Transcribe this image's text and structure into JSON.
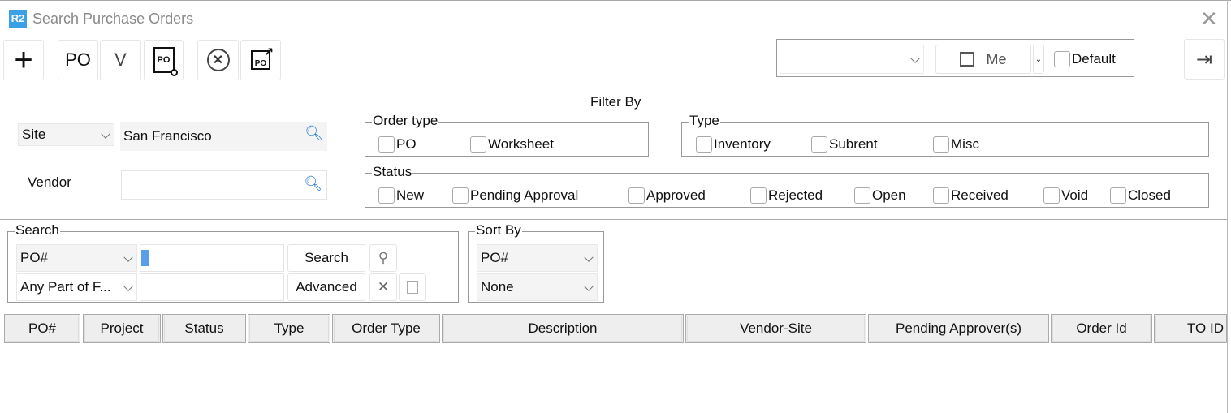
{
  "window": {
    "logo": "R2",
    "title": "Search Purchase Orders",
    "close": "✕"
  },
  "toolbar": {
    "add": "+",
    "po": "PO",
    "vendor": "V",
    "po_icon": "PO",
    "export_icon": "PO"
  },
  "layout_panel": {
    "layout_value": "",
    "save_label": "Me",
    "default_label": "Default",
    "default_checked": false
  },
  "filter": {
    "heading": "Filter By",
    "site_selector": "Site",
    "site_value": "San Francisco",
    "vendor_label": "Vendor",
    "vendor_value": "",
    "order_type": {
      "label": "Order type",
      "options": [
        "PO",
        "Worksheet"
      ]
    },
    "type": {
      "label": "Type",
      "options": [
        "Inventory",
        "Subrent",
        "Misc"
      ]
    },
    "status": {
      "label": "Status",
      "options": [
        "New",
        "Pending Approval",
        "Approved",
        "Rejected",
        "Open",
        "Received",
        "Void",
        "Closed"
      ]
    }
  },
  "search": {
    "label": "Search",
    "field": "PO#",
    "match": "Any Part of F...",
    "value": "",
    "value2": "",
    "search_button": "Search",
    "advanced_button": "Advanced"
  },
  "sort": {
    "label": "Sort By",
    "primary": "PO#",
    "secondary": "None"
  },
  "table": {
    "columns": [
      "PO#",
      "Project",
      "Status",
      "Type",
      "Order Type",
      "Description",
      "Vendor-Site",
      "Pending Approver(s)",
      "Order Id",
      "TO ID"
    ],
    "rows": []
  },
  "colors": {
    "accent": "#3aa0e8"
  }
}
